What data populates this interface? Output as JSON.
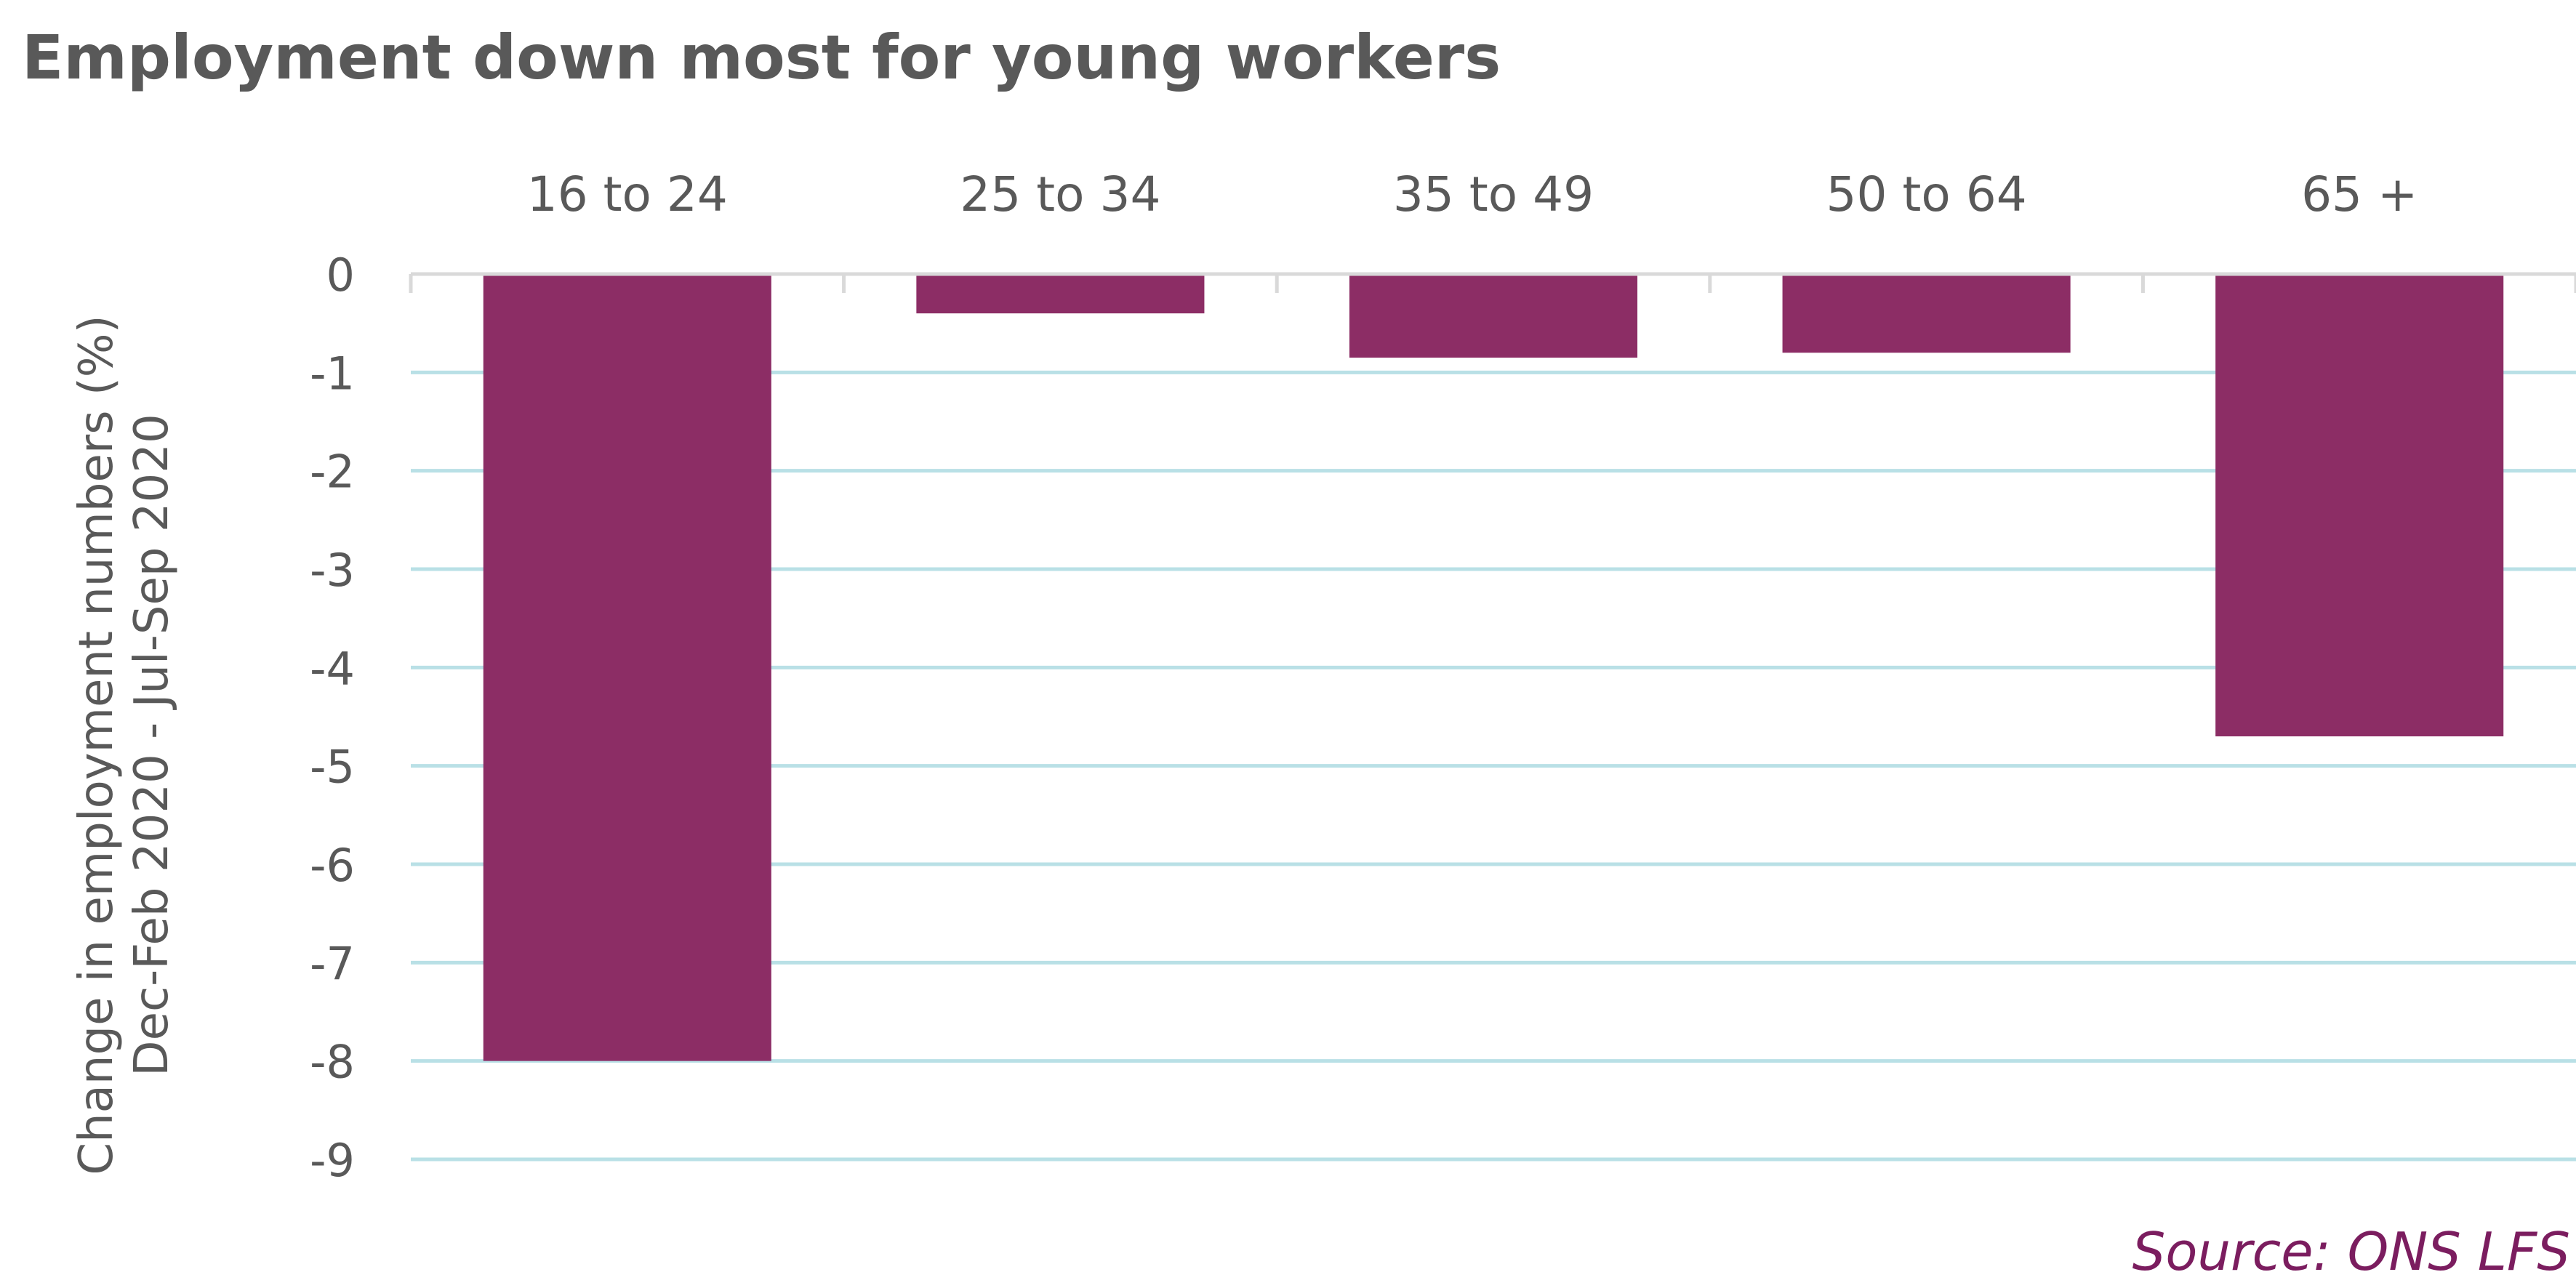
{
  "title": "Employment down most for young workers",
  "source": "Source: ONS LFS",
  "colors": {
    "bar": "#8c2d65",
    "gridline": "#b9e0e6",
    "axis": "#d9d9d9",
    "text": "#595959",
    "source": "#7b1d5f"
  },
  "chart_data": {
    "type": "bar",
    "title": "Employment down most for young workers",
    "categories": [
      "16 to 24",
      "25 to 34",
      "35 to 49",
      "50 to 64",
      "65 +"
    ],
    "values": [
      -8.0,
      -0.4,
      -0.85,
      -0.8,
      -4.7
    ],
    "xlabel": "",
    "ylabel": "Change in employment numbers (%)\nDec-Feb 2020 - Jul-Sep 2020",
    "ylabel_lines": [
      "Change in employment numbers (%)",
      "Dec-Feb 2020 - Jul-Sep 2020"
    ],
    "ylim": [
      -9,
      0
    ],
    "yticks": [
      0,
      -1,
      -2,
      -3,
      -4,
      -5,
      -6,
      -7,
      -8,
      -9
    ],
    "ytick_labels": [
      "0",
      "-1",
      "-2",
      "-3",
      "-4",
      "-5",
      "-6",
      "-7",
      "-8",
      "-9"
    ],
    "category_axis_position": "top",
    "grid": true,
    "legend": "none"
  }
}
